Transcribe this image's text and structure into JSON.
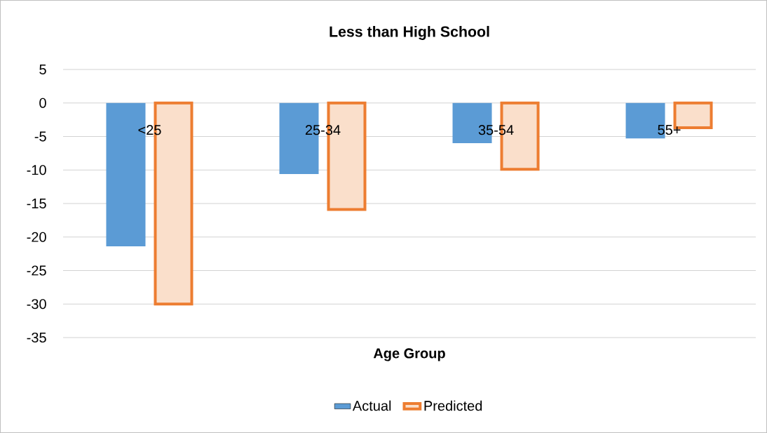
{
  "chart_data": {
    "type": "bar",
    "title": "Less than High School",
    "xlabel": "Age Group",
    "categories": [
      "<25",
      "25-34",
      "35-54",
      "55+"
    ],
    "series": [
      {
        "name": "Actual",
        "color": "#5b9bd5",
        "values": [
          -21.4,
          -10.6,
          -6.0,
          -5.3
        ]
      },
      {
        "name": "Predicted",
        "color": "#ed7d31",
        "values": [
          -30.0,
          -15.9,
          -9.9,
          -3.7
        ]
      }
    ],
    "ylim": [
      -35,
      5
    ],
    "yticks": [
      -35,
      -30,
      -25,
      -20,
      -15,
      -10,
      -5,
      0,
      5
    ],
    "grid": "y",
    "legend": "bottom"
  }
}
